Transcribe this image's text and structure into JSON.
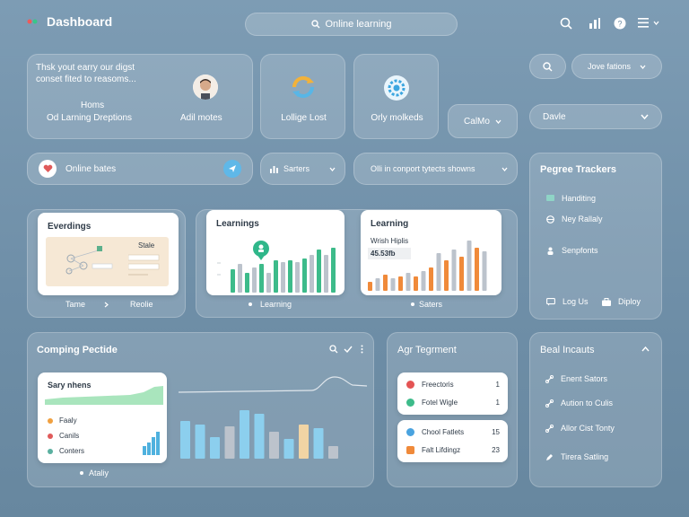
{
  "header": {
    "title": "Dashboard",
    "search_label": "Online learning"
  },
  "top_cards": {
    "intro_line1": "Thsk yout earry our digst",
    "intro_line2": "conset fited to reasoms...",
    "homs_label": "Homs",
    "od_label": "Od Larning Dreptions",
    "adil_label": "Adil motes",
    "lollige_label": "Lollige Lost",
    "orly_label": "Orly molkeds",
    "calfo_label": "CalMo"
  },
  "right_top": {
    "jove_label": "Jove fations",
    "davle_label": "Davle"
  },
  "filters": {
    "online_bates": "Online bates",
    "sarters": "Sarters",
    "olli_label": "Olli in conport tytects showns"
  },
  "pegree": {
    "title": "Pegree Trackers",
    "items": [
      "Handiting",
      "Ney Rallaly",
      "Senpfonts"
    ],
    "log_label": "Log Us",
    "diploy_label": "Diploy"
  },
  "mid_cards": {
    "everdings_title": "Everdings",
    "everdings_box": "Stale",
    "tame_label": "Tame",
    "reolie_label": "Reolie",
    "learnings_title": "Learnings",
    "learnings_footer": "Learning",
    "learning_title": "Learning",
    "wrish_label": "Wrish Hiplis",
    "value_label": "45.53fb",
    "saters_footer": "Saters"
  },
  "comping": {
    "title": "Comping Pectide",
    "sary_label": "Sary nhens",
    "legend": [
      "Faaly",
      "Canils",
      "Conters"
    ],
    "legend_colors": [
      "#f0a040",
      "#e05a5a",
      "#5ab0a0"
    ],
    "ataliy_label": "Ataliy"
  },
  "agr": {
    "title": "Agr Tegrment",
    "rows1": [
      {
        "label": "Freectoris",
        "value": "1"
      },
      {
        "label": "Fotel Wigle",
        "value": "1"
      }
    ],
    "rows2": [
      {
        "label": "Chool Fatlets",
        "value": "15"
      },
      {
        "label": "Falt Lifdingz",
        "value": "23"
      }
    ]
  },
  "beal": {
    "title": "Beal Incauts",
    "items": [
      "Enent Sators",
      "Aution to Culis",
      "Allor Cist Tonty",
      "Tirera Satling"
    ]
  },
  "colors": {
    "accent_green": "#3dbb8a",
    "accent_orange": "#f08a3a",
    "accent_blue": "#8ccfee",
    "bar_gray": "#bcc3cc"
  }
}
